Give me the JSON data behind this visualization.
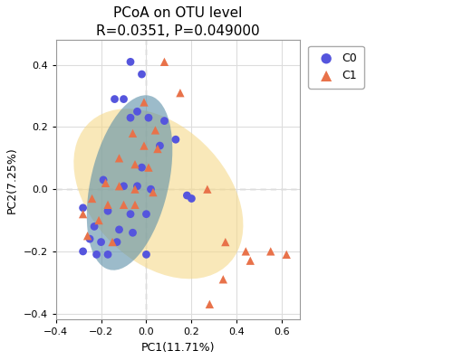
{
  "title": "PCoA on OTU level",
  "subtitle": "R=0.0351, P=0.049000",
  "xlabel": "PC1(11.71%)",
  "ylabel": "PC2(7.25%)",
  "xlim": [
    -0.4,
    0.68
  ],
  "ylim": [
    -0.42,
    0.48
  ],
  "xticks": [
    -0.4,
    -0.2,
    0.0,
    0.2,
    0.4,
    0.6
  ],
  "yticks": [
    -0.4,
    -0.2,
    0.0,
    0.2,
    0.4
  ],
  "c0_color": "#5555dd",
  "c1_color": "#e8724a",
  "c0_ellipse_color": "#5b8fa8",
  "c1_ellipse_color": "#f5d98b",
  "c0_points": [
    [
      -0.07,
      0.41
    ],
    [
      -0.02,
      0.37
    ],
    [
      -0.1,
      0.29
    ],
    [
      -0.14,
      0.29
    ],
    [
      -0.04,
      0.25
    ],
    [
      -0.07,
      0.23
    ],
    [
      0.01,
      0.23
    ],
    [
      0.08,
      0.22
    ],
    [
      0.13,
      0.16
    ],
    [
      0.06,
      0.14
    ],
    [
      -0.02,
      0.07
    ],
    [
      -0.19,
      0.03
    ],
    [
      -0.1,
      0.01
    ],
    [
      -0.04,
      0.01
    ],
    [
      0.02,
      0.0
    ],
    [
      0.18,
      -0.02
    ],
    [
      0.2,
      -0.03
    ],
    [
      -0.28,
      -0.06
    ],
    [
      -0.17,
      -0.07
    ],
    [
      -0.07,
      -0.08
    ],
    [
      0.0,
      -0.08
    ],
    [
      -0.23,
      -0.12
    ],
    [
      -0.12,
      -0.13
    ],
    [
      -0.06,
      -0.14
    ],
    [
      -0.25,
      -0.16
    ],
    [
      -0.2,
      -0.17
    ],
    [
      -0.13,
      -0.17
    ],
    [
      -0.28,
      -0.2
    ],
    [
      -0.22,
      -0.21
    ],
    [
      -0.17,
      -0.21
    ],
    [
      0.0,
      -0.21
    ]
  ],
  "c1_points": [
    [
      0.08,
      0.41
    ],
    [
      0.15,
      0.31
    ],
    [
      -0.01,
      0.28
    ],
    [
      0.04,
      0.19
    ],
    [
      -0.06,
      0.18
    ],
    [
      -0.01,
      0.14
    ],
    [
      0.05,
      0.13
    ],
    [
      -0.12,
      0.1
    ],
    [
      -0.05,
      0.08
    ],
    [
      0.01,
      0.07
    ],
    [
      -0.18,
      0.02
    ],
    [
      -0.12,
      0.01
    ],
    [
      -0.05,
      0.0
    ],
    [
      0.03,
      -0.01
    ],
    [
      0.27,
      0.0
    ],
    [
      -0.24,
      -0.03
    ],
    [
      -0.17,
      -0.05
    ],
    [
      -0.1,
      -0.05
    ],
    [
      -0.05,
      -0.05
    ],
    [
      -0.28,
      -0.08
    ],
    [
      -0.21,
      -0.1
    ],
    [
      -0.26,
      -0.15
    ],
    [
      -0.15,
      -0.17
    ],
    [
      0.35,
      -0.17
    ],
    [
      0.44,
      -0.2
    ],
    [
      0.55,
      -0.2
    ],
    [
      0.46,
      -0.23
    ],
    [
      0.62,
      -0.21
    ],
    [
      0.34,
      -0.29
    ],
    [
      0.28,
      -0.37
    ]
  ],
  "background_color": "#ffffff",
  "grid_color": "#dddddd",
  "title_fontsize": 11,
  "subtitle_fontsize": 9,
  "axis_label_fontsize": 9,
  "tick_fontsize": 8
}
